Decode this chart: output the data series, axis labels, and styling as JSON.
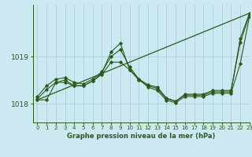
{
  "background_color": "#cce8f0",
  "grid_color": "#aacfdb",
  "line_color": "#2d5a1b",
  "xlabel": "Graphe pression niveau de la mer (hPa)",
  "ylim": [
    1017.6,
    1020.1
  ],
  "yticks": [
    1018,
    1019
  ],
  "xlim": [
    -0.5,
    23
  ],
  "xticks": [
    0,
    1,
    2,
    3,
    4,
    5,
    6,
    7,
    8,
    9,
    10,
    11,
    12,
    13,
    14,
    15,
    16,
    17,
    18,
    19,
    20,
    21,
    22,
    23
  ],
  "series": [
    [
      1018.1,
      1018.3,
      1018.45,
      1018.5,
      1018.38,
      1018.38,
      1018.48,
      1018.62,
      1018.88,
      1018.88,
      1018.72,
      1018.52,
      1018.35,
      1018.28,
      1018.07,
      1018.02,
      1018.15,
      1018.15,
      1018.15,
      1018.22,
      1018.22,
      1018.22,
      1018.85,
      1019.85
    ],
    [
      1018.15,
      1018.38,
      1018.52,
      1018.55,
      1018.45,
      1018.42,
      1018.52,
      1018.68,
      1019.0,
      1019.15,
      1018.78,
      1018.52,
      1018.4,
      1018.35,
      1018.12,
      1018.05,
      1018.2,
      1018.2,
      1018.2,
      1018.28,
      1018.28,
      1018.28,
      1019.3,
      1019.88
    ],
    [
      1018.08,
      1018.08,
      1018.45,
      1018.45,
      1018.38,
      1018.38,
      1018.48,
      1018.65,
      1019.1,
      1019.28,
      1018.72,
      1018.5,
      1018.38,
      1018.32,
      1018.1,
      1018.05,
      1018.18,
      1018.18,
      1018.18,
      1018.25,
      1018.25,
      1018.25,
      1019.38,
      1019.92
    ]
  ],
  "straight_line": [
    1018.08,
    1019.92
  ]
}
